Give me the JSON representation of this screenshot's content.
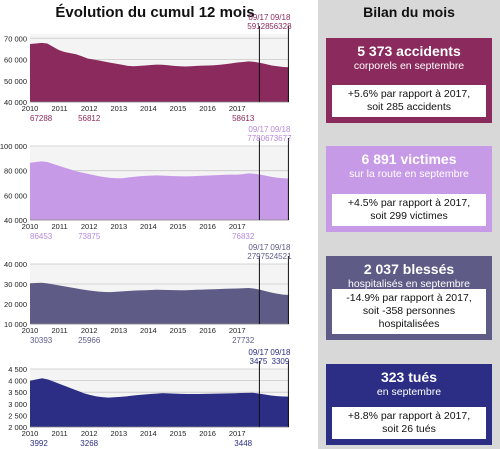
{
  "title": "Évolution du cumul 12 mois",
  "side_title": "Bilan du mois",
  "markers": {
    "left": "09/17",
    "right": "09/18"
  },
  "cards": [
    {
      "big": "5 373 accidents",
      "sub": "corporels en septembre",
      "line1": "+5.6% par rapport à 2017,",
      "line2": "soit 285 accidents",
      "color": "#8b2a5c"
    },
    {
      "big": "6 891 victimes",
      "sub": "sur la route en septembre",
      "line1": "+4.5% par rapport à 2017,",
      "line2": "soit 299 victimes",
      "color": "#c79ae8"
    },
    {
      "big": "2 037 blessés",
      "sub": "hospitalisés en septembre",
      "line1": "-14.9% par rapport à 2017,",
      "line2": "soit -358 personnes hospitalisées",
      "color": "#5e5b86"
    },
    {
      "big": "323 tués",
      "sub": "en septembre",
      "line1": "+8.8% par rapport à 2017,",
      "line2": "soit 26 tués",
      "color": "#2b2e84"
    }
  ],
  "chart_data": [
    {
      "type": "area",
      "color": "#8b2a5c",
      "label_color": "#8b2a5c",
      "ylim": [
        40000,
        72000
      ],
      "yticks": [
        40000,
        50000,
        60000,
        70000
      ],
      "ytick_labels": [
        "40 000",
        "50 000",
        "60 000",
        "70 000"
      ],
      "xticks": [
        2010,
        2011,
        2012,
        2013,
        2014,
        2015,
        2016,
        2017
      ],
      "xlim": [
        2010,
        2018.75
      ],
      "values": [
        67288,
        67500,
        67800,
        67500,
        66000,
        64500,
        63500,
        63000,
        62500,
        61500,
        60500,
        60000,
        59500,
        59000,
        58500,
        58000,
        57500,
        57000,
        56812,
        57000,
        57200,
        57400,
        57600,
        57500,
        57300,
        57000,
        56800,
        56700,
        56800,
        57000,
        57100,
        57200,
        57300,
        57500,
        57800,
        58200,
        58613,
        58800,
        59128,
        58900,
        58400,
        57800,
        57200,
        56800,
        56500,
        56328
      ],
      "annotations": [
        {
          "text": "67288",
          "x": 2010
        },
        {
          "text": "56812",
          "x": 2012
        },
        {
          "text": "58613",
          "x": 2017
        }
      ],
      "marker_values": [
        "59128",
        "56328"
      ]
    },
    {
      "type": "area",
      "color": "#c79ae8",
      "label_color": "#b68adb",
      "ylim": [
        40000,
        100000
      ],
      "yticks": [
        40000,
        60000,
        80000,
        100000
      ],
      "ytick_labels": [
        "40 000",
        "60 000",
        "80 000",
        "100 000"
      ],
      "xticks": [
        2010,
        2011,
        2012,
        2013,
        2014,
        2015,
        2016,
        2017
      ],
      "xlim": [
        2010,
        2018.75
      ],
      "values": [
        86453,
        87000,
        87500,
        87000,
        85500,
        84000,
        82500,
        81000,
        79500,
        78500,
        77500,
        76500,
        75500,
        74800,
        74200,
        73800,
        73875,
        74500,
        75000,
        75500,
        75800,
        76000,
        76200,
        76000,
        75800,
        75600,
        75500,
        75400,
        75500,
        75700,
        75900,
        76100,
        76300,
        76500,
        76700,
        76800,
        76832,
        77200,
        77806,
        77500,
        76800,
        75900,
        75000,
        74300,
        73900,
        73677
      ],
      "annotations": [
        {
          "text": "86453",
          "x": 2010
        },
        {
          "text": "73875",
          "x": 2012
        },
        {
          "text": "76832",
          "x": 2017
        }
      ],
      "marker_values": [
        "77806",
        "73677"
      ]
    },
    {
      "type": "area",
      "color": "#5e5b86",
      "label_color": "#5e5b86",
      "ylim": [
        10000,
        40000
      ],
      "yticks": [
        10000,
        20000,
        30000,
        40000
      ],
      "ytick_labels": [
        "10 000",
        "20 000",
        "30 000",
        "40 000"
      ],
      "xticks": [
        2010,
        2011,
        2012,
        2013,
        2014,
        2015,
        2016,
        2017
      ],
      "xlim": [
        2010,
        2018.75
      ],
      "values": [
        30393,
        30500,
        30600,
        30300,
        29800,
        29300,
        28800,
        28300,
        27800,
        27300,
        26900,
        26500,
        26200,
        26000,
        25966,
        26100,
        26300,
        26500,
        26700,
        26800,
        26900,
        27000,
        27100,
        27050,
        27000,
        26950,
        26900,
        26900,
        27000,
        27100,
        27200,
        27300,
        27400,
        27500,
        27600,
        27700,
        27732,
        27850,
        27975,
        27700,
        27100,
        26400,
        25700,
        25100,
        24700,
        24521
      ],
      "annotations": [
        {
          "text": "30393",
          "x": 2010
        },
        {
          "text": "25966",
          "x": 2012
        },
        {
          "text": "27732",
          "x": 2017
        }
      ],
      "marker_values": [
        "27975",
        "24521"
      ]
    },
    {
      "type": "area",
      "color": "#2b2e84",
      "label_color": "#2b2e84",
      "ylim": [
        2000,
        4500
      ],
      "yticks": [
        2000,
        2500,
        3000,
        3500,
        4000,
        4500
      ],
      "ytick_labels": [
        "2 000",
        "2 500",
        "3 000",
        "3 500",
        "4 000",
        "4 500"
      ],
      "xticks": [
        2010,
        2011,
        2012,
        2013,
        2014,
        2015,
        2016,
        2017
      ],
      "xlim": [
        2010,
        2018.75
      ],
      "values": [
        3992,
        4050,
        4100,
        4050,
        3950,
        3850,
        3750,
        3650,
        3550,
        3450,
        3380,
        3320,
        3290,
        3268,
        3280,
        3300,
        3320,
        3350,
        3380,
        3400,
        3420,
        3440,
        3460,
        3450,
        3440,
        3430,
        3420,
        3420,
        3425,
        3430,
        3435,
        3440,
        3445,
        3448,
        3455,
        3465,
        3470,
        3475,
        3440,
        3400,
        3360,
        3330,
        3315,
        3309
      ],
      "annotations": [
        {
          "text": "3992",
          "x": 2010
        },
        {
          "text": "3268",
          "x": 2012
        },
        {
          "text": "3448",
          "x": 2017
        }
      ],
      "marker_values": [
        "3475",
        "3309"
      ]
    }
  ]
}
